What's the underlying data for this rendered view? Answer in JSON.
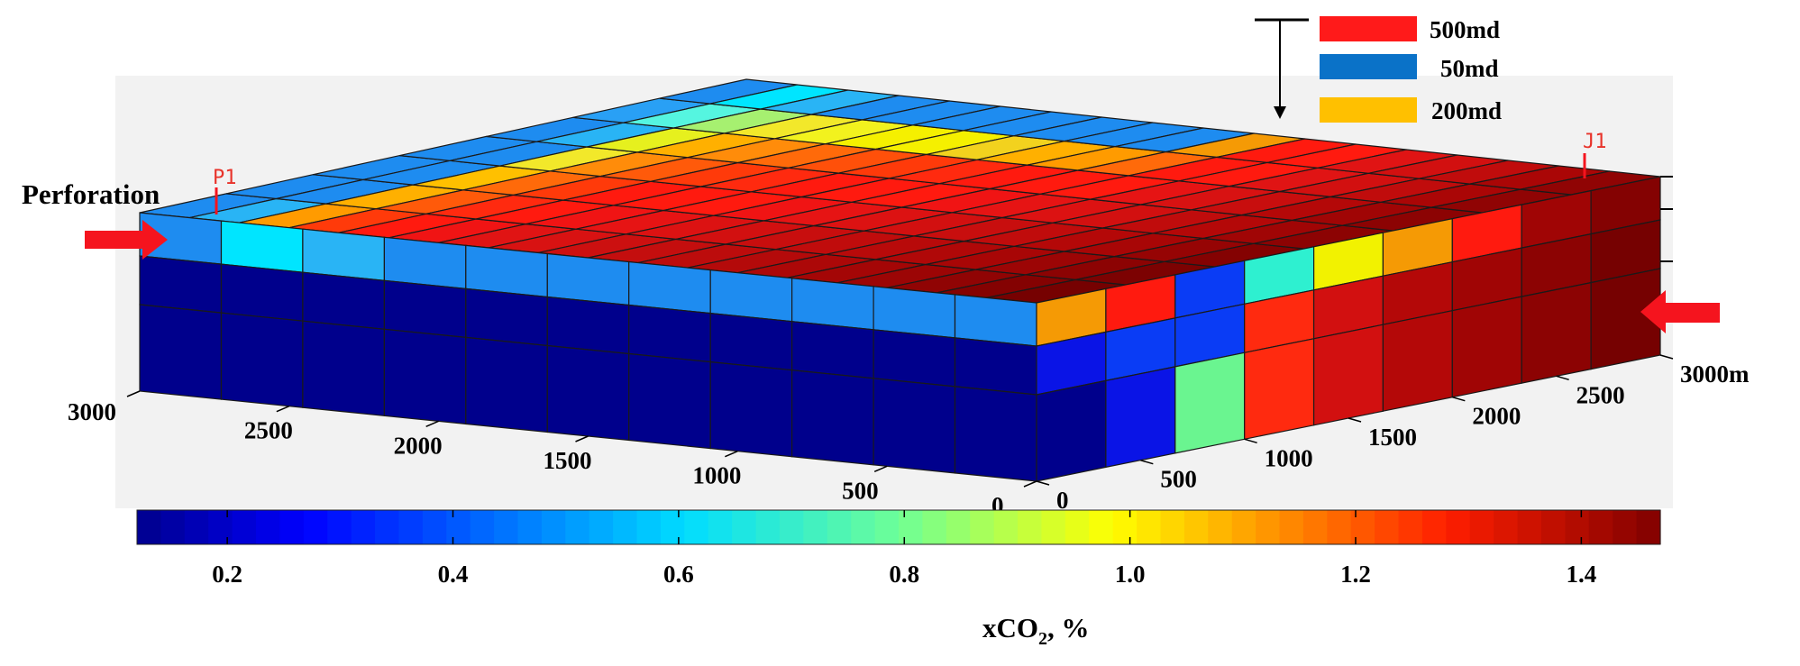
{
  "perforation_label": "Perforation",
  "wells": [
    {
      "name": "P1"
    },
    {
      "name": "J1"
    }
  ],
  "legend": [
    {
      "label": "500md",
      "color": "#ff1a1a"
    },
    {
      "label": "50md",
      "color": "#0a72c8"
    },
    {
      "label": "200md",
      "color": "#ffc000"
    }
  ],
  "axis_front": {
    "ticks": [
      "3000",
      "2500",
      "2000",
      "1500",
      "1000",
      "500",
      "0"
    ]
  },
  "axis_right": {
    "ticks": [
      "0",
      "500",
      "1000",
      "1500",
      "2000",
      "2500",
      "3000m"
    ]
  },
  "colorbar": {
    "ticks": [
      "0.2",
      "0.4",
      "0.6",
      "0.8",
      "1.0",
      "1.2",
      "1.4"
    ],
    "tick_values": [
      0.2,
      0.4,
      0.6,
      0.8,
      1.0,
      1.2,
      1.4
    ],
    "min": 0.12,
    "max": 1.47,
    "title_main": "xCO",
    "title_sub": "2",
    "title_tail": ", %"
  },
  "colors": {
    "arrow": "#f5141e",
    "grid_line": "#1a1a1a",
    "background_panel": "#f2f2f2"
  },
  "cells": {
    "top_rows": [
      [
        "#1e8cf0",
        "#00e5ff",
        "#29b4f5",
        "#1e8cf0",
        "#1e8cf0",
        "#1e8cf0",
        "#1e8cf0",
        "#1e8cf0",
        "#1e8cf0",
        "#1e8cf0",
        "#f59a05",
        "#ff1a0f",
        "#ff1a0f",
        "#e01414",
        "#d21010",
        "#c00c0c",
        "#aa0606",
        "#900404"
      ],
      [
        "#29a0f5",
        "#55f5e0",
        "#a6f070",
        "#f2e82a",
        "#f2f21e",
        "#f5f000",
        "#f5f000",
        "#f2d21e",
        "#ffb000",
        "#ff9b00",
        "#ff6a0a",
        "#ff1a0f",
        "#ff1a0f",
        "#e01414",
        "#d21010",
        "#c00c0c",
        "#aa0606",
        "#900404"
      ],
      [
        "#1e8cf0",
        "#29b4f5",
        "#e6f01e",
        "#ffb000",
        "#ff8c0a",
        "#ff6a0a",
        "#ff500a",
        "#ff3a0a",
        "#ff2a0f",
        "#ff1a0f",
        "#ff1a0f",
        "#ff1a0f",
        "#e61414",
        "#d81212",
        "#c80e0e",
        "#b40808",
        "#a00505",
        "#8c0303"
      ],
      [
        "#1e8cf0",
        "#1e8cf0",
        "#f2e82a",
        "#ff8c0a",
        "#ff5a0a",
        "#ff3a0a",
        "#ff2a0f",
        "#ff1a0f",
        "#ff1a0f",
        "#ff1a0f",
        "#f01414",
        "#e61414",
        "#dc1212",
        "#d21010",
        "#c00c0c",
        "#b40808",
        "#a00505",
        "#8c0303"
      ],
      [
        "#1e8cf0",
        "#1e8cf0",
        "#ffc000",
        "#ff6a0a",
        "#ff3a0a",
        "#ff1a0f",
        "#ff1a0f",
        "#ff1a0f",
        "#f01414",
        "#e61414",
        "#dc1212",
        "#d21010",
        "#c80e0e",
        "#c00c0c",
        "#b40808",
        "#a80606",
        "#960404",
        "#840202"
      ],
      [
        "#1e8cf0",
        "#1e8cf0",
        "#ffb000",
        "#ff5a0a",
        "#ff2a0f",
        "#ff1a0f",
        "#f01414",
        "#e61414",
        "#dc1212",
        "#d21010",
        "#c80e0e",
        "#c00c0c",
        "#b80a0a",
        "#b00808",
        "#a80606",
        "#9c0505",
        "#8c0303",
        "#7c0202"
      ],
      [
        "#1e8cf0",
        "#29b4f5",
        "#ff9b00",
        "#ff3a0a",
        "#ff1a0f",
        "#f01414",
        "#e01414",
        "#d81212",
        "#cc1010",
        "#c40e0e",
        "#bc0c0c",
        "#b40a0a",
        "#ac0808",
        "#a40606",
        "#9c0505",
        "#900404",
        "#840202",
        "#760101"
      ]
    ],
    "front_top": [
      "#1e8cf0",
      "#00e5ff",
      "#29b4f5",
      "#1e8cf0",
      "#1e8cf0",
      "#1e8cf0",
      "#1e8cf0",
      "#1e8cf0",
      "#1e8cf0",
      "#1e8cf0",
      "#1e8cf0"
    ],
    "front_mid": [
      "#00008c",
      "#00008c",
      "#00008c",
      "#00008c",
      "#00008c",
      "#00008c",
      "#00008c",
      "#00008c",
      "#00008c",
      "#00008c",
      "#00008c"
    ],
    "front_bot": [
      "#00008c",
      "#00008c",
      "#00008c",
      "#00008c",
      "#00008c",
      "#00008c",
      "#00008c",
      "#00008c",
      "#00008c",
      "#00008c",
      "#00008c"
    ],
    "right_top": [
      "#f59a05",
      "#ff1a0f",
      "#0a3cf5",
      "#2ef0d0",
      "#f2f200",
      "#f59a05",
      "#ff1a0f",
      "#a00505",
      "#840202"
    ],
    "right_mid": [
      "#0a14e6",
      "#0a3cf5",
      "#0a3cf5",
      "#ff2a0f",
      "#d21010",
      "#b40808",
      "#a00505",
      "#8c0303",
      "#760101"
    ],
    "right_bot": [
      "#00008c",
      "#0a14e6",
      "#6af590",
      "#ff2a0f",
      "#d21010",
      "#b40808",
      "#a00505",
      "#8c0303",
      "#760101"
    ]
  }
}
